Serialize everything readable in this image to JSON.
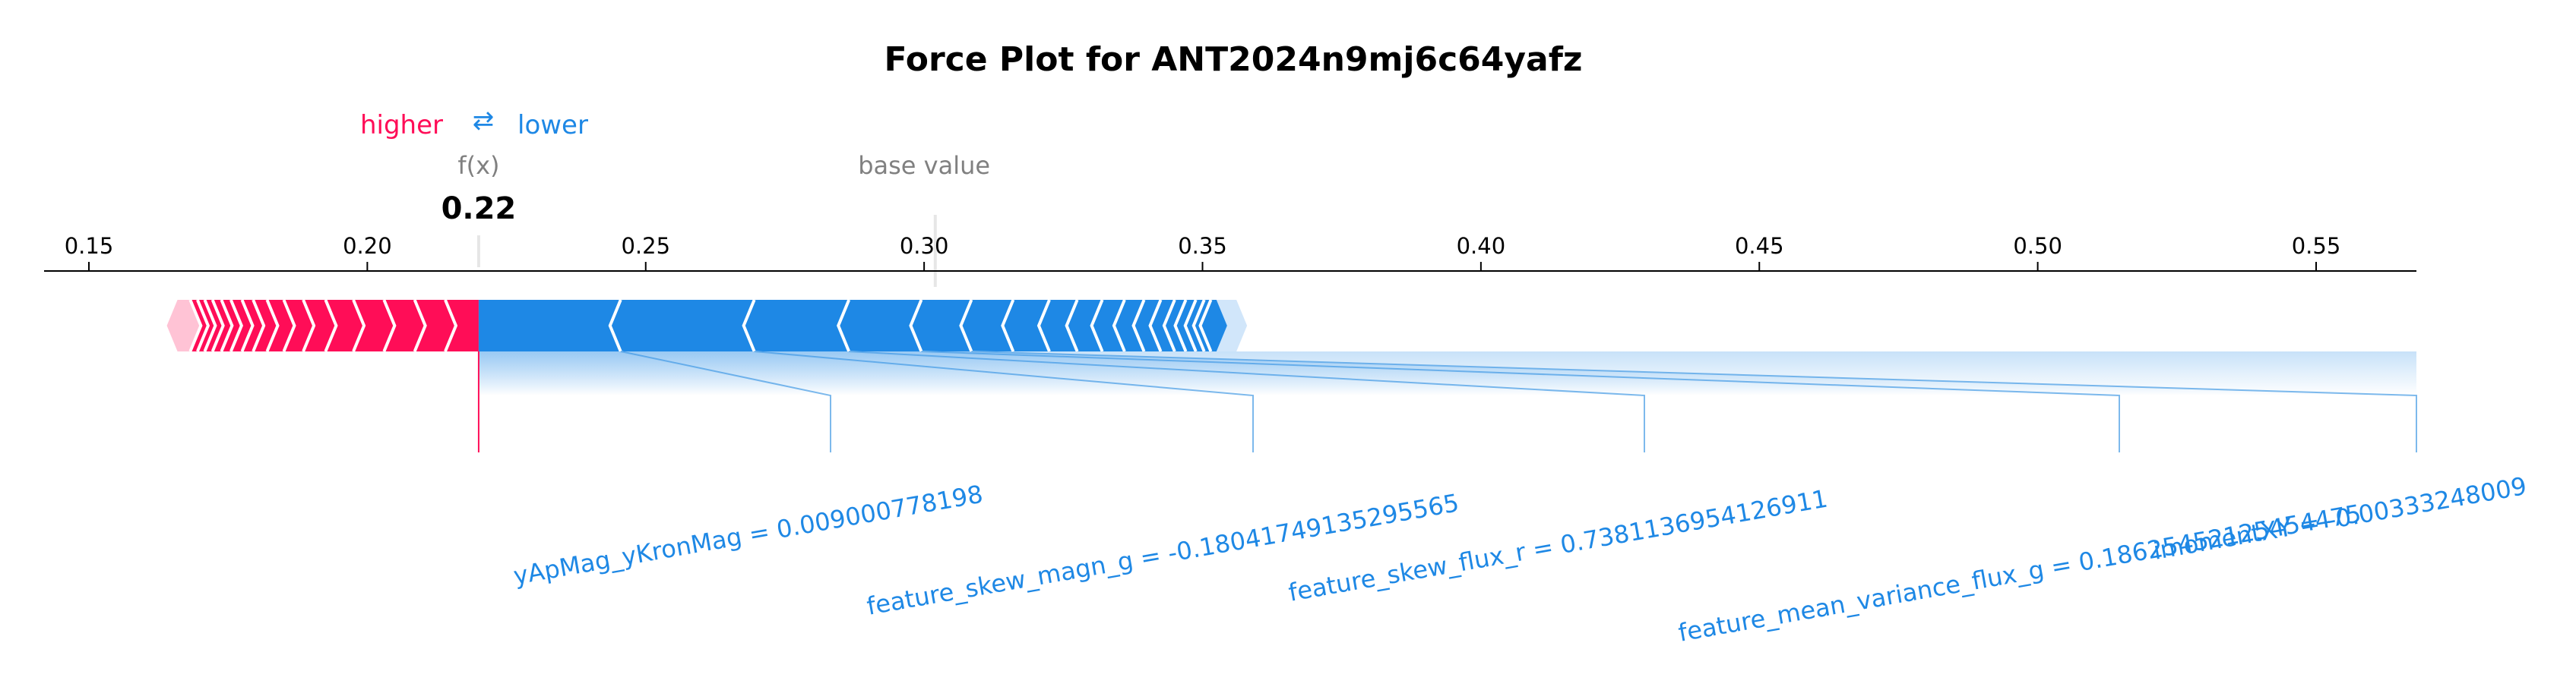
{
  "chart_data": {
    "type": "force",
    "title": "Force Plot for ANT2024n9mj6c64yafz",
    "legend": {
      "higher_label": "higher",
      "arrow_symbol": "⇄",
      "lower_label": "lower"
    },
    "fx_label": "f(x)",
    "fx_value": 0.22,
    "fx_value_label": "0.22",
    "base_value_label": "base value",
    "base_value": 0.302,
    "x_range": [
      0.136,
      0.562
    ],
    "ticks": [
      0.15,
      0.2,
      0.25,
      0.3,
      0.35,
      0.4,
      0.45,
      0.5,
      0.55
    ],
    "tick_labels": [
      "0.15",
      "0.20",
      "0.25",
      "0.30",
      "0.35",
      "0.40",
      "0.45",
      "0.50",
      "0.55"
    ],
    "positive_extent": [
      0.164,
      0.22
    ],
    "negative_extent": [
      0.22,
      0.358
    ],
    "positive_boundaries": [
      0.1682,
      0.1695,
      0.1708,
      0.1722,
      0.1738,
      0.1755,
      0.1775,
      0.1795,
      0.182,
      0.185,
      0.1885,
      0.1925,
      0.1975,
      0.203,
      0.2085,
      0.214
    ],
    "negative_boundaries": [
      0.2455,
      0.2695,
      0.2865,
      0.2995,
      0.3085,
      0.316,
      0.3225,
      0.3275,
      0.332,
      0.336,
      0.3395,
      0.3425,
      0.345,
      0.347,
      0.3488,
      0.3503,
      0.3515
    ],
    "negative_colored_end": 0.3525,
    "negative_features": [
      {
        "label": "yApMag_yKronMag = 0.009000778198",
        "start": 0.22,
        "end": 0.2455
      },
      {
        "label": "feature_skew_magn_g = -0.18041749135295565",
        "start": 0.2455,
        "end": 0.2695
      },
      {
        "label": "feature_skew_flux_r = 0.7381136954126911",
        "start": 0.2695,
        "end": 0.2865
      },
      {
        "label": "feature_mean_variance_flux_g = 0.18625452125454475",
        "start": 0.2865,
        "end": 0.2995
      },
      {
        "label": "imomentXY = -0.00333248009",
        "start": 0.2995,
        "end": 0.3085
      }
    ],
    "colors": {
      "positive": "#FF0D57",
      "negative": "#1E88E5",
      "positive_light": "#FFC3D5",
      "negative_light": "#D1E6FA"
    }
  }
}
